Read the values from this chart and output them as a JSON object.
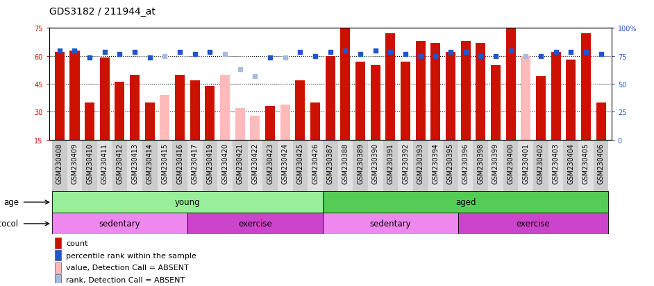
{
  "title": "GDS3182 / 211944_at",
  "samples": [
    "GSM230408",
    "GSM230409",
    "GSM230410",
    "GSM230411",
    "GSM230412",
    "GSM230413",
    "GSM230414",
    "GSM230415",
    "GSM230416",
    "GSM230417",
    "GSM230419",
    "GSM230420",
    "GSM230421",
    "GSM230422",
    "GSM230423",
    "GSM230424",
    "GSM230425",
    "GSM230426",
    "GSM230387",
    "GSM230388",
    "GSM230389",
    "GSM230390",
    "GSM230391",
    "GSM230392",
    "GSM230393",
    "GSM230394",
    "GSM230395",
    "GSM230396",
    "GSM230398",
    "GSM230399",
    "GSM230400",
    "GSM230401",
    "GSM230402",
    "GSM230403",
    "GSM230404",
    "GSM230405",
    "GSM230406"
  ],
  "bar_values": [
    62,
    63,
    35,
    59,
    46,
    50,
    35,
    39,
    50,
    47,
    44,
    50,
    32,
    28,
    33,
    34,
    47,
    35,
    60,
    75,
    57,
    55,
    72,
    57,
    68,
    67,
    62,
    68,
    67,
    55,
    75,
    60,
    49,
    62,
    58,
    72,
    35
  ],
  "bar_absent": [
    false,
    false,
    false,
    false,
    false,
    false,
    false,
    true,
    false,
    false,
    false,
    true,
    true,
    true,
    false,
    true,
    false,
    false,
    false,
    false,
    false,
    false,
    false,
    false,
    false,
    false,
    false,
    false,
    false,
    false,
    false,
    true,
    false,
    false,
    false,
    false,
    false
  ],
  "rank_values": [
    63,
    63,
    59,
    62,
    61,
    62,
    59,
    60,
    62,
    61,
    62,
    61,
    53,
    49,
    59,
    59,
    62,
    60,
    62,
    63,
    61,
    63,
    62,
    61,
    60,
    60,
    62,
    62,
    60,
    60,
    63,
    60,
    60,
    62,
    62,
    62,
    61
  ],
  "rank_absent": [
    false,
    false,
    false,
    false,
    false,
    false,
    false,
    true,
    false,
    false,
    false,
    true,
    true,
    true,
    false,
    true,
    false,
    false,
    false,
    false,
    false,
    false,
    false,
    false,
    false,
    false,
    false,
    false,
    false,
    false,
    false,
    true,
    false,
    false,
    false,
    false,
    false
  ],
  "ylim_left": [
    15,
    75
  ],
  "ylim_right": [
    0,
    100
  ],
  "yticks_left": [
    15,
    30,
    45,
    60,
    75
  ],
  "yticks_right": [
    0,
    25,
    50,
    75,
    100
  ],
  "bar_color_present": "#cc1100",
  "bar_color_absent": "#ffbbbb",
  "rank_color_present": "#2255cc",
  "rank_color_absent": "#aabbdd",
  "age_young_color": "#99ee99",
  "age_aged_color": "#55cc55",
  "protocol_sedentary_color": "#ee88ee",
  "protocol_exercise_color": "#cc44cc",
  "age_groups": [
    {
      "label": "young",
      "start": 0,
      "end": 18
    },
    {
      "label": "aged",
      "start": 18,
      "end": 37
    }
  ],
  "protocol_groups": [
    {
      "label": "sedentary",
      "start": 0,
      "end": 9,
      "type": "sedentary"
    },
    {
      "label": "exercise",
      "start": 9,
      "end": 18,
      "type": "exercise"
    },
    {
      "label": "sedentary",
      "start": 18,
      "end": 27,
      "type": "sedentary"
    },
    {
      "label": "exercise",
      "start": 27,
      "end": 37,
      "type": "exercise"
    }
  ],
  "legend_items": [
    {
      "label": "count",
      "color": "#cc1100"
    },
    {
      "label": "percentile rank within the sample",
      "color": "#2255cc"
    },
    {
      "label": "value, Detection Call = ABSENT",
      "color": "#ffbbbb"
    },
    {
      "label": "rank, Detection Call = ABSENT",
      "color": "#aabbdd"
    }
  ],
  "title_fontsize": 10,
  "tick_fontsize": 7,
  "label_fontsize": 8.5,
  "legend_fontsize": 8
}
